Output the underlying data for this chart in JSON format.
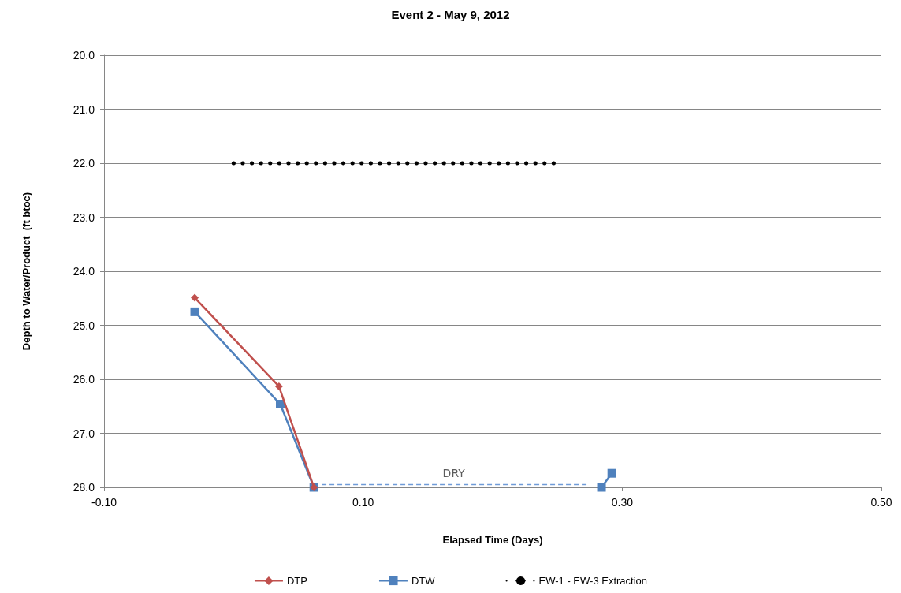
{
  "chart_data": {
    "type": "line",
    "title": "Event 2 - May 9, 2012",
    "xlabel": "Elapsed Time (Days)",
    "ylabel": "Depth to Water/Product  (ft btoc)",
    "xlim": [
      -0.1,
      0.5
    ],
    "xticks": [
      {
        "value": -0.1,
        "label": "-0.10"
      },
      {
        "value": 0.1,
        "label": "0.10"
      },
      {
        "value": 0.3,
        "label": "0.30"
      },
      {
        "value": 0.5,
        "label": "0.50"
      }
    ],
    "ylim": [
      28,
      20
    ],
    "yticks": [
      {
        "value": 20,
        "label": "20.0"
      },
      {
        "value": 21,
        "label": "21.0"
      },
      {
        "value": 22,
        "label": "22.0"
      },
      {
        "value": 23,
        "label": "23.0"
      },
      {
        "value": 24,
        "label": "24.0"
      },
      {
        "value": 25,
        "label": "25.0"
      },
      {
        "value": 26,
        "label": "26.0"
      },
      {
        "value": 27,
        "label": "27.0"
      },
      {
        "value": 28,
        "label": "28.0"
      }
    ],
    "grid": "y",
    "legend": "bottom",
    "series": [
      {
        "name": "DTP",
        "color": "#c0504d",
        "marker": "diamond",
        "line_style": "solid",
        "x": [
          -0.03,
          0.035,
          0.062
        ],
        "values": [
          24.49,
          26.13,
          28.0
        ]
      },
      {
        "name": "DTW",
        "color": "#4f81bd",
        "marker": "square",
        "line_style": "solid",
        "x": [
          -0.03,
          0.036,
          0.062,
          null,
          0.284,
          0.292
        ],
        "values": [
          24.75,
          26.46,
          28.0,
          null,
          28.0,
          27.74
        ]
      },
      {
        "name": "EW-1 - EW-3 Extraction",
        "color": "#000000",
        "marker": "none",
        "line_style": "dotted",
        "x": [
          0.0,
          0.25
        ],
        "values": [
          22.0,
          22.0
        ]
      },
      {
        "color": "#6f9bd8",
        "marker": "none",
        "line_style": "dashed",
        "x": [
          0.068,
          0.273
        ],
        "values": [
          27.95,
          27.95
        ]
      }
    ],
    "annotations": [
      {
        "text": "DRY",
        "x": 0.17,
        "y": 27.95
      }
    ]
  }
}
